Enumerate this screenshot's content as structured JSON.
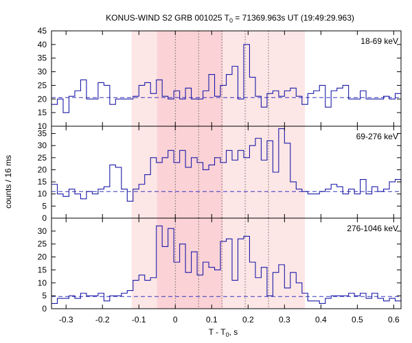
{
  "chart_data": {
    "type": "line",
    "title_main": "KONUS-WIND S2 GRB 001025 T",
    "title_sub": "0",
    "title_rest": " = 71369.963s UT (19:49:29.963)",
    "ylabel": "counts / 16 ms",
    "xlabel_main": "T - T",
    "xlabel_sub": "0",
    "xlabel_rest": ", s",
    "xlim": [
      -0.34,
      0.62
    ],
    "x_ticks": [
      -0.3,
      -0.2,
      -0.1,
      0,
      0.1,
      0.2,
      0.3,
      0.4,
      0.5,
      0.6
    ],
    "x_tick_labels": [
      "-0.3",
      "-0.2",
      "-0.1",
      "0",
      "0.1",
      "0.2",
      "0.3",
      "0.4",
      "0.5",
      "0.6"
    ],
    "bin_width": 0.016,
    "x_start": -0.34,
    "shaded_regions": [
      {
        "x0": -0.12,
        "x1": 0.356,
        "color": "#fde6e6"
      },
      {
        "x0": -0.05,
        "x1": 0.13,
        "color": "#fbd2d6"
      }
    ],
    "vertical_dotted_lines": [
      0,
      0.064,
      0.128,
      0.192,
      0.256
    ],
    "panels": [
      {
        "label": "18-69 keV",
        "ylim": [
          10,
          45
        ],
        "y_ticks": [
          10,
          15,
          20,
          25,
          30,
          35,
          40,
          45
        ],
        "y_tick_labels": [
          "10",
          "15",
          "20",
          "25",
          "30",
          "35",
          "40",
          "45"
        ],
        "background": 20.5,
        "values": [
          18,
          20,
          15,
          21,
          23,
          27,
          20,
          20,
          26,
          25,
          18,
          20,
          20,
          20,
          21,
          25,
          26,
          22,
          27,
          21,
          20,
          23,
          20,
          24,
          20,
          20,
          23,
          29,
          21,
          25,
          29,
          32,
          20,
          40,
          28,
          21,
          17,
          22,
          23,
          21,
          23,
          24,
          21,
          18,
          22,
          23,
          25,
          17,
          23,
          24,
          25,
          20,
          20,
          23,
          20,
          20,
          20,
          21,
          20,
          22,
          24,
          20,
          23,
          24,
          27,
          17,
          25,
          22,
          25,
          25,
          25,
          26,
          24,
          20,
          21,
          27,
          24,
          25,
          23,
          22,
          27,
          27,
          27,
          26,
          25,
          25,
          25,
          25,
          25,
          25
        ]
      },
      {
        "label": "69-276 keV",
        "ylim": [
          0,
          38
        ],
        "y_ticks": [
          0,
          5,
          10,
          15,
          20,
          25,
          30,
          35
        ],
        "y_tick_labels": [
          "0",
          "5",
          "10",
          "15",
          "20",
          "25",
          "30",
          "35"
        ],
        "background": 11,
        "values": [
          14,
          10,
          9,
          12,
          10,
          8,
          11,
          10,
          12,
          13,
          22,
          21,
          12,
          7,
          12,
          14,
          18,
          25,
          23,
          25,
          28,
          23,
          28,
          21,
          25,
          23,
          20,
          22,
          25,
          23,
          28,
          24,
          28,
          25,
          30,
          33,
          24,
          32,
          19,
          37,
          31,
          15,
          12,
          11,
          10,
          10,
          11,
          12,
          14,
          13,
          10,
          12,
          10,
          16,
          10,
          13,
          11,
          12,
          15,
          16,
          14,
          17,
          10,
          16,
          11,
          16,
          17,
          14,
          13,
          11,
          9,
          9,
          10,
          9,
          10,
          9,
          10,
          8,
          11,
          9,
          12,
          13,
          14,
          15,
          13,
          12,
          13,
          12,
          13,
          12
        ]
      },
      {
        "label": "276-1046 keV",
        "ylim": [
          0,
          35
        ],
        "y_ticks": [
          0,
          5,
          10,
          15,
          20,
          25,
          30
        ],
        "y_tick_labels": [
          "0",
          "5",
          "10",
          "15",
          "20",
          "25",
          "30"
        ],
        "background": 4.7,
        "values": [
          2,
          4,
          4,
          5,
          4,
          6,
          5,
          5,
          6,
          3,
          5,
          5,
          6,
          7,
          11,
          13,
          11,
          12,
          32,
          24,
          31,
          18,
          25,
          14,
          22,
          13,
          18,
          16,
          15,
          26,
          27,
          11,
          27,
          28,
          18,
          12,
          16,
          5,
          14,
          17,
          8,
          14,
          10,
          6,
          3,
          3,
          2,
          4,
          5,
          5,
          5,
          6,
          5,
          6,
          4,
          6,
          4,
          3,
          4,
          3,
          5,
          5,
          6,
          6,
          7,
          6,
          6,
          6,
          3,
          4,
          4,
          3,
          2,
          1,
          3,
          4,
          7,
          6,
          3,
          4,
          4,
          3,
          5,
          5,
          4,
          3,
          4,
          4,
          5,
          4
        ]
      }
    ]
  }
}
